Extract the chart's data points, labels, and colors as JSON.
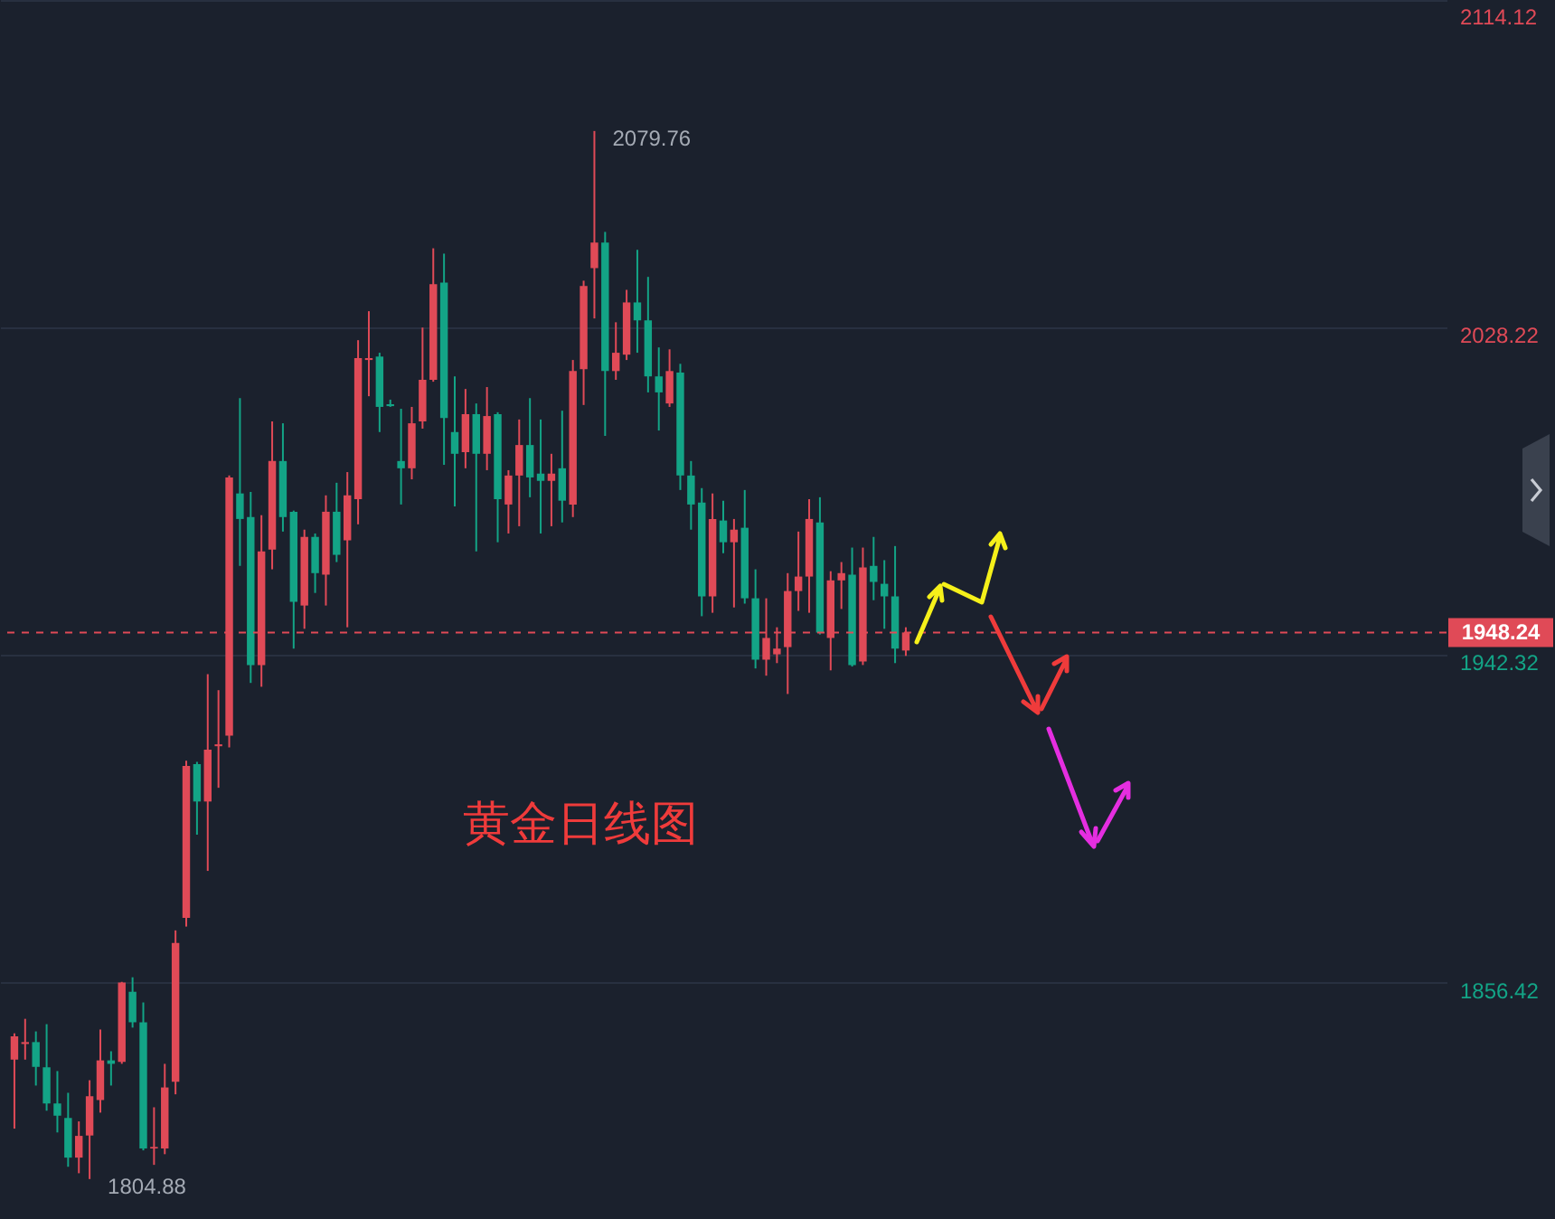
{
  "chart_data": {
    "type": "candlestick",
    "categories": [
      null,
      null,
      null,
      null,
      null,
      null,
      null,
      null,
      null,
      null,
      null,
      null,
      null,
      null,
      null,
      null,
      null,
      null,
      null,
      null,
      null,
      null,
      null,
      null,
      null,
      null,
      null,
      null,
      null,
      null,
      null,
      null,
      null,
      null,
      null,
      null,
      null,
      null,
      null,
      null,
      null,
      null,
      null,
      null,
      null,
      null,
      null,
      null,
      null,
      null,
      null,
      null,
      null,
      null,
      null,
      null,
      null,
      null,
      null,
      null,
      null,
      null,
      null,
      null,
      null,
      null,
      null,
      null,
      null,
      null,
      null,
      null,
      null,
      null,
      null,
      null,
      null,
      null,
      null,
      null,
      null,
      null,
      null,
      null,
      null,
      null,
      null,
      null,
      null,
      null,
      null,
      null,
      null,
      null,
      null,
      null,
      null,
      null,
      null,
      null,
      null,
      null,
      null,
      null,
      null,
      null,
      null,
      null,
      null,
      null,
      null,
      null,
      null,
      null,
      null,
      null,
      null,
      null,
      null,
      null,
      null,
      null,
      null,
      null,
      null,
      null,
      null,
      null,
      null,
      null,
      null,
      null,
      null
    ],
    "ohlc": [
      [
        1836.2,
        1843.1,
        1818.1,
        1842.3
      ],
      [
        1840.3,
        1846.9,
        1836.2,
        1840.8
      ],
      [
        1840.8,
        1843.6,
        1829.4,
        1834.3
      ],
      [
        1834.2,
        1845.5,
        1822.8,
        1824.7
      ],
      [
        1824.7,
        1833.2,
        1817.1,
        1821.5
      ],
      [
        1820.9,
        1827.5,
        1808.1,
        1810.5
      ],
      [
        1810.5,
        1820.0,
        1806.4,
        1816.2
      ],
      [
        1816.3,
        1830.8,
        1804.88,
        1826.6
      ],
      [
        1825.6,
        1844.1,
        1822.3,
        1836.0
      ],
      [
        1836.0,
        1838.4,
        1829.4,
        1835.1
      ],
      [
        1835.6,
        1856.6,
        1835.1,
        1856.4
      ],
      [
        1854.0,
        1857.8,
        1844.6,
        1846.0
      ],
      [
        1846.0,
        1851.2,
        1812.4,
        1812.9
      ],
      [
        1812.9,
        1823.7,
        1808.6,
        1813.3
      ],
      [
        1812.9,
        1835.1,
        1811.4,
        1828.9
      ],
      [
        1830.4,
        1870.1,
        1827.1,
        1866.8
      ],
      [
        1873.4,
        1914.6,
        1871.1,
        1913.2
      ],
      [
        1913.7,
        1914.3,
        1895.2,
        1903.9
      ],
      [
        1903.9,
        1937.3,
        1885.7,
        1917.5
      ],
      [
        1918.4,
        1933.1,
        1907.5,
        1918.9
      ],
      [
        1921.2,
        1989.4,
        1918.1,
        1988.9
      ],
      [
        1984.7,
        2009.7,
        1965.7,
        1978.0
      ],
      [
        1978.5,
        1985.1,
        1935.0,
        1939.7
      ],
      [
        1939.7,
        1979.0,
        1934.0,
        1969.5
      ],
      [
        1970.0,
        2003.6,
        1964.8,
        1993.2
      ],
      [
        1993.2,
        2003.1,
        1974.7,
        1978.5
      ],
      [
        1979.9,
        1980.2,
        1944.0,
        1956.3
      ],
      [
        1955.3,
        1975.2,
        1949.2,
        1973.3
      ],
      [
        1973.3,
        1974.2,
        1958.6,
        1963.8
      ],
      [
        1963.4,
        1984.2,
        1955.3,
        1979.9
      ],
      [
        1979.9,
        1987.5,
        1966.7,
        1968.6
      ],
      [
        1972.4,
        1990.3,
        1949.6,
        1984.2
      ],
      [
        1983.2,
        2024.9,
        1976.6,
        2020.2
      ],
      [
        2019.7,
        2032.5,
        2010.2,
        2020.2
      ],
      [
        2020.6,
        2021.6,
        2000.8,
        2007.4
      ],
      [
        2008.1,
        2009.3,
        2007.4,
        2007.6
      ],
      [
        1993.2,
        2006.9,
        1981.8,
        1991.3
      ],
      [
        1991.3,
        2007.4,
        1988.4,
        2003.1
      ],
      [
        2003.6,
        2028.2,
        2001.7,
        2014.5
      ],
      [
        2014.5,
        2049.0,
        2014.0,
        2039.6
      ],
      [
        2040.0,
        2047.6,
        1992.2,
        2004.5
      ],
      [
        2000.8,
        2015.4,
        1981.3,
        1995.1
      ],
      [
        1995.5,
        2012.1,
        1991.3,
        2005.5
      ],
      [
        2005.5,
        2008.3,
        1969.5,
        1995.1
      ],
      [
        1995.1,
        2012.6,
        1990.8,
        2005.0
      ],
      [
        2005.5,
        2006.0,
        1971.9,
        1983.2
      ],
      [
        1981.8,
        1990.8,
        1974.2,
        1989.4
      ],
      [
        1989.4,
        2004.1,
        1976.1,
        1997.4
      ],
      [
        1997.4,
        2009.7,
        1983.7,
        1988.9
      ],
      [
        1989.9,
        2004.1,
        1974.2,
        1988.0
      ],
      [
        1988.0,
        1995.1,
        1976.1,
        1989.9
      ],
      [
        1991.3,
        2006.4,
        1977.1,
        1982.8
      ],
      [
        1981.8,
        2019.7,
        1978.5,
        2016.8
      ],
      [
        2017.3,
        2040.5,
        2007.9,
        2039.1
      ],
      [
        2043.8,
        2079.76,
        2030.6,
        2050.5
      ],
      [
        2050.5,
        2053.3,
        1999.8,
        2016.8
      ],
      [
        2016.8,
        2029.6,
        2014.5,
        2021.6
      ],
      [
        2021.1,
        2038.1,
        2019.7,
        2034.8
      ],
      [
        2034.8,
        2048.6,
        2021.6,
        2030.1
      ],
      [
        2030.1,
        2041.5,
        2011.2,
        2015.4
      ],
      [
        2015.4,
        2023.0,
        2001.2,
        2011.2
      ],
      [
        2008.3,
        2022.5,
        2007.4,
        2016.8
      ],
      [
        2016.4,
        2018.7,
        1985.6,
        1989.4
      ],
      [
        1989.4,
        1993.2,
        1975.2,
        1981.8
      ],
      [
        1982.3,
        1986.1,
        1952.5,
        1957.7
      ],
      [
        1957.7,
        1984.7,
        1953.4,
        1978.0
      ],
      [
        1977.6,
        1982.8,
        1969.0,
        1971.9
      ],
      [
        1971.9,
        1978.0,
        1954.8,
        1975.2
      ],
      [
        1975.7,
        1985.6,
        1955.8,
        1957.2
      ],
      [
        1957.2,
        1964.8,
        1938.8,
        1941.1
      ],
      [
        1941.1,
        1957.2,
        1936.9,
        1946.8
      ],
      [
        1942.5,
        1949.6,
        1940.2,
        1944.0
      ],
      [
        1944.4,
        1963.8,
        1932.1,
        1959.1
      ],
      [
        1959.1,
        1974.7,
        1953.9,
        1962.9
      ],
      [
        1962.9,
        1983.2,
        1953.4,
        1978.0
      ],
      [
        1977.1,
        1983.7,
        1947.7,
        1948.2
      ],
      [
        1946.8,
        1964.3,
        1938.3,
        1961.9
      ],
      [
        1961.9,
        1966.7,
        1954.4,
        1963.8
      ],
      [
        1963.4,
        1970.5,
        1939.3,
        1939.7
      ],
      [
        1940.6,
        1970.5,
        1939.7,
        1965.3
      ],
      [
        1965.7,
        1973.3,
        1956.7,
        1961.5
      ],
      [
        1961.0,
        1967.2,
        1949.2,
        1957.7
      ],
      [
        1957.7,
        1970.9,
        1940.2,
        1944.0
      ],
      [
        1943.5,
        1949.6,
        1942.1,
        1948.24
      ],
      null,
      null,
      null,
      null,
      null,
      null,
      null,
      null,
      null,
      null,
      null,
      null,
      null,
      null,
      null,
      null,
      null,
      null,
      null,
      null,
      null,
      null,
      null,
      null,
      null,
      null,
      null,
      null,
      null,
      null,
      null,
      null,
      null,
      null,
      null,
      null,
      null,
      null,
      null,
      null,
      null,
      null,
      null,
      null,
      null,
      null,
      null,
      null,
      null
    ],
    "colors": [
      "#e04a57",
      "#e04a57",
      "#13a486",
      "#13a486",
      "#13a486",
      "#13a486",
      "#e04a57",
      "#e04a57",
      "#e04a57",
      "#13a486",
      "#e04a57",
      "#13a486",
      "#13a486",
      "#e04a57",
      "#e04a57",
      "#e04a57",
      "#e04a57",
      "#13a486",
      "#e04a57",
      "#e04a57",
      "#e04a57",
      "#13a486",
      "#13a486",
      "#e04a57",
      "#e04a57",
      "#13a486",
      "#13a486",
      "#e04a57",
      "#13a486",
      "#e04a57",
      "#13a486",
      "#e04a57",
      "#e04a57",
      "#e04a57",
      "#13a486",
      "#13a486",
      "#13a486",
      "#e04a57",
      "#e04a57",
      "#e04a57",
      "#13a486",
      "#13a486",
      "#e04a57",
      "#13a486",
      "#e04a57",
      "#13a486",
      "#e04a57",
      "#e04a57",
      "#13a486",
      "#13a486",
      "#e04a57",
      "#13a486",
      "#e04a57",
      "#e04a57",
      "#e04a57",
      "#13a486",
      "#e04a57",
      "#e04a57",
      "#13a486",
      "#13a486",
      "#13a486",
      "#e04a57",
      "#13a486",
      "#13a486",
      "#13a486",
      "#e04a57",
      "#13a486",
      "#e04a57",
      "#13a486",
      "#13a486",
      "#e04a57",
      "#e04a57",
      "#e04a57",
      "#e04a57",
      "#e04a57",
      "#13a486",
      "#e04a57",
      "#e04a57",
      "#13a486",
      "#e04a57",
      "#13a486",
      "#13a486",
      "#13a486",
      "#e04a57",
      null,
      null,
      null,
      null,
      null,
      null,
      null,
      null,
      null,
      null,
      null,
      null,
      null,
      null,
      null,
      null,
      null,
      null,
      null,
      null,
      null,
      null,
      null,
      null,
      null,
      null,
      null,
      null,
      null,
      null,
      null,
      null,
      null,
      null,
      null,
      null,
      null,
      null,
      null,
      null,
      null,
      null,
      null,
      null,
      null,
      null,
      null,
      null,
      null
    ],
    "ylim": [
      1794.4,
      2114.12
    ],
    "yticks": [
      1856.42,
      1942.32,
      2028.22,
      2114.12
    ],
    "grid": "y",
    "ref_lines": [
      {
        "axis": "y",
        "value": 1948.24,
        "label": "1948.24",
        "color": "#e04a57",
        "line_style": "dashed"
      }
    ],
    "annotations": [
      "2079.76",
      "1804.88",
      "黄金日线图"
    ]
  }
}
